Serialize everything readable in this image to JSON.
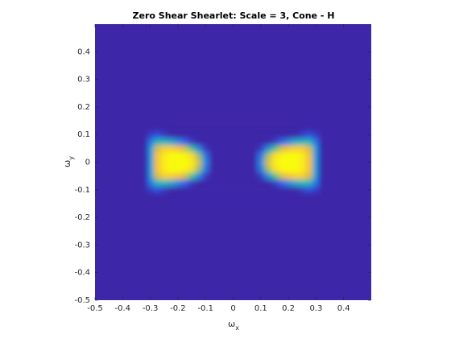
{
  "chart_data": {
    "type": "heatmap",
    "title": "Zero Shear Shearlet: Scale = 3, Cone - H",
    "xlabel": {
      "symbol": "ω",
      "subscript": "x"
    },
    "ylabel": {
      "symbol": "ω",
      "subscript": "y"
    },
    "xlim": [
      -0.5,
      0.5
    ],
    "ylim": [
      -0.5,
      0.5
    ],
    "xticks": [
      -0.5,
      -0.4,
      -0.3,
      -0.2,
      -0.1,
      0,
      0.1,
      0.2,
      0.3,
      0.4
    ],
    "yticks": [
      -0.5,
      -0.4,
      -0.3,
      -0.2,
      -0.1,
      0,
      0.1,
      0.2,
      0.3,
      0.4
    ],
    "colormap": [
      "#3e26a8",
      "#2f5bec",
      "#1b88e0",
      "#0fb0c9",
      "#45c190",
      "#a8c35c",
      "#f0b93c",
      "#fad22c",
      "#f9fb0e"
    ],
    "x": [
      -0.3,
      -0.275,
      -0.25,
      -0.225,
      -0.2,
      -0.175,
      -0.15,
      -0.125,
      -0.1,
      -0.075,
      -0.05,
      -0.025,
      0,
      0.025,
      0.05,
      0.075,
      0.1,
      0.125,
      0.15,
      0.175,
      0.2,
      0.225,
      0.25,
      0.275,
      0.3
    ],
    "y": [
      -0.1,
      -0.075,
      -0.05,
      -0.025,
      0,
      0.025,
      0.05,
      0.075,
      0.1
    ],
    "z": [
      [
        0.05,
        0.1,
        0.05,
        0,
        0,
        0,
        0,
        0,
        0,
        0,
        0,
        0,
        0,
        0,
        0,
        0,
        0,
        0,
        0,
        0,
        0,
        0,
        0.05,
        0.1,
        0.05
      ],
      [
        0.2,
        0.4,
        0.4,
        0.35,
        0.25,
        0.15,
        0.05,
        0,
        0,
        0,
        0,
        0,
        0,
        0,
        0,
        0,
        0,
        0,
        0.05,
        0.15,
        0.25,
        0.35,
        0.4,
        0.4,
        0.2
      ],
      [
        0.3,
        0.7,
        0.85,
        0.85,
        0.8,
        0.7,
        0.5,
        0.25,
        0.05,
        0,
        0,
        0,
        0,
        0,
        0,
        0,
        0.05,
        0.25,
        0.5,
        0.7,
        0.8,
        0.85,
        0.85,
        0.7,
        0.3
      ],
      [
        0.3,
        0.8,
        0.95,
        1,
        1,
        0.98,
        0.9,
        0.6,
        0.2,
        0,
        0,
        0,
        0,
        0,
        0,
        0,
        0.2,
        0.6,
        0.9,
        0.98,
        1,
        1,
        0.95,
        0.8,
        0.3
      ],
      [
        0.3,
        0.8,
        0.95,
        1,
        1,
        1,
        0.95,
        0.7,
        0.25,
        0,
        0,
        0,
        0,
        0,
        0,
        0,
        0.25,
        0.7,
        0.95,
        1,
        1,
        1,
        0.95,
        0.8,
        0.3
      ],
      [
        0.3,
        0.8,
        0.95,
        1,
        1,
        0.98,
        0.9,
        0.6,
        0.2,
        0,
        0,
        0,
        0,
        0,
        0,
        0,
        0.2,
        0.6,
        0.9,
        0.98,
        1,
        1,
        0.95,
        0.8,
        0.3
      ],
      [
        0.3,
        0.7,
        0.85,
        0.85,
        0.8,
        0.7,
        0.5,
        0.25,
        0.05,
        0,
        0,
        0,
        0,
        0,
        0,
        0,
        0.05,
        0.25,
        0.5,
        0.7,
        0.8,
        0.85,
        0.85,
        0.7,
        0.3
      ],
      [
        0.2,
        0.4,
        0.4,
        0.35,
        0.25,
        0.15,
        0.05,
        0,
        0,
        0,
        0,
        0,
        0,
        0,
        0,
        0,
        0,
        0,
        0.05,
        0.15,
        0.25,
        0.35,
        0.4,
        0.4,
        0.2
      ],
      [
        0.05,
        0.1,
        0.05,
        0,
        0,
        0,
        0,
        0,
        0,
        0,
        0,
        0,
        0,
        0,
        0,
        0,
        0,
        0,
        0,
        0,
        0,
        0,
        0.05,
        0.1,
        0.05
      ]
    ]
  }
}
